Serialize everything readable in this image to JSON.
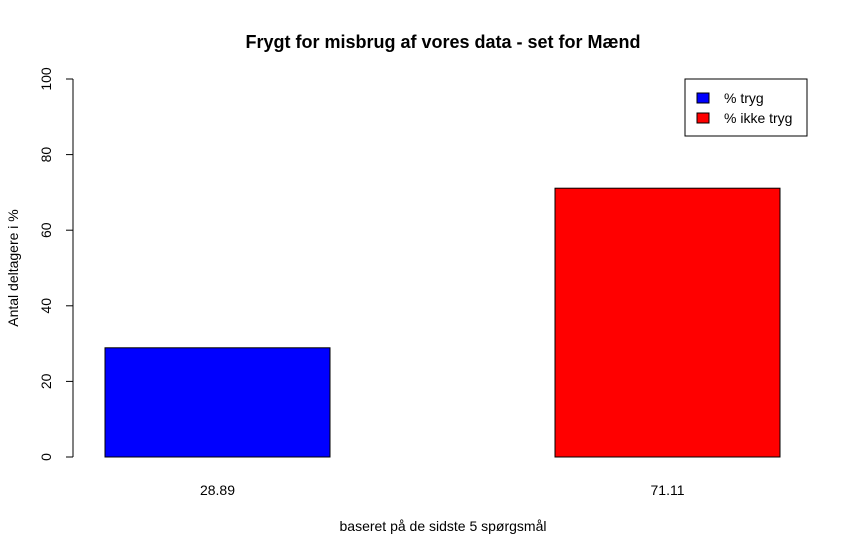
{
  "chart_data": {
    "type": "bar",
    "title": "Frygt for misbrug af vores data - set for Mænd",
    "xlabel": "baseret på de sidste 5 spørgsmål",
    "ylabel": "Antal deltagere i %",
    "ylim": [
      0,
      100
    ],
    "yticks": [
      "0",
      "20",
      "40",
      "60",
      "80",
      "100"
    ],
    "categories": [
      "28.89",
      "71.11"
    ],
    "values": [
      28.89,
      71.11
    ],
    "colors": [
      "#0000ff",
      "#ff0000"
    ],
    "grid": false,
    "legend": {
      "position": "top-right",
      "entries": [
        {
          "label": "% tryg",
          "color": "#0000ff"
        },
        {
          "label": "% ikke tryg",
          "color": "#ff0000"
        }
      ]
    }
  }
}
